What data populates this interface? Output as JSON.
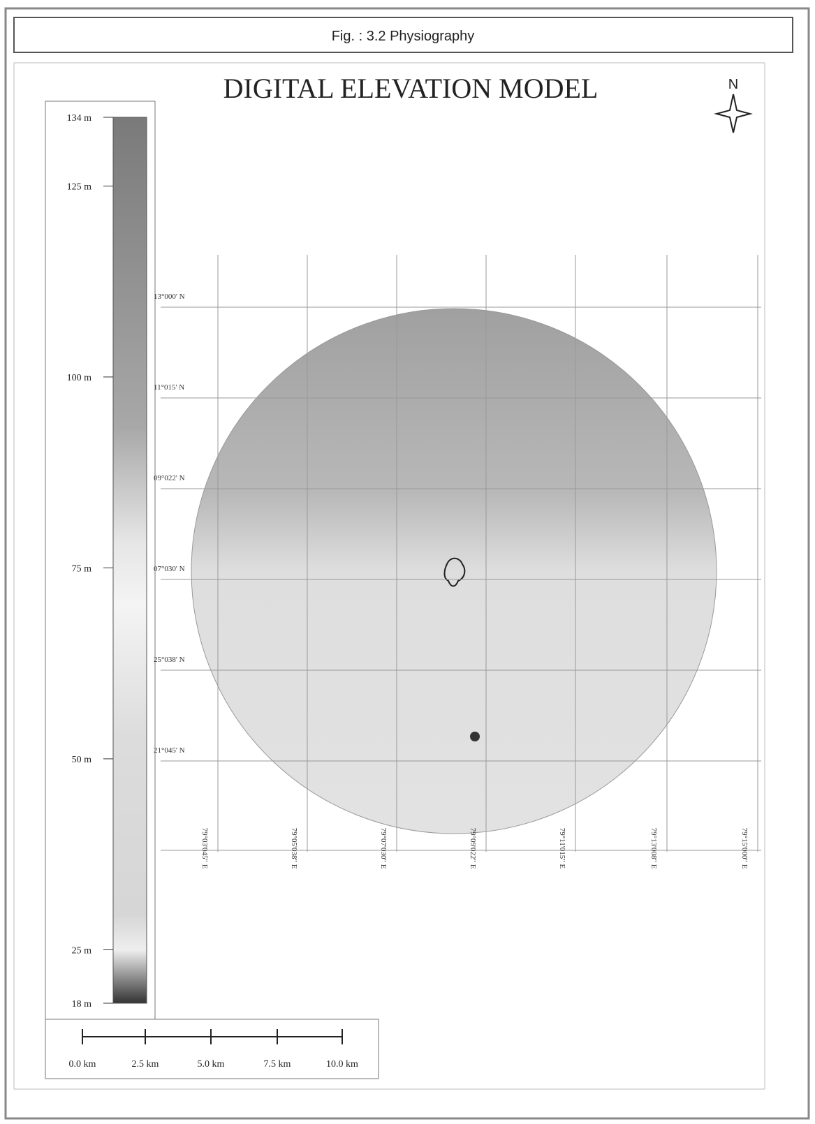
{
  "header": {
    "title": "Fig. : 3.2  Physiography"
  },
  "map": {
    "title": "DIGITAL ELEVATION MODEL",
    "north": "N",
    "legend": {
      "range": [
        18,
        134
      ],
      "ticks": [
        {
          "value": 134,
          "label": "134 m"
        },
        {
          "value": 125,
          "label": "125 m"
        },
        {
          "value": 100,
          "label": "100 m"
        },
        {
          "value": 75,
          "label": "75 m"
        },
        {
          "value": 50,
          "label": "50 m"
        },
        {
          "value": 25,
          "label": "25 m"
        },
        {
          "value": 18,
          "label": "18 m"
        }
      ]
    },
    "latitudes": [
      "13°000' N",
      "11°015' N",
      "09°022' N",
      "07°030' N",
      "25°038' N",
      "21°045' N"
    ],
    "longitudes": [
      "79°03'045\" E",
      "79°05'038\" E",
      "79°07'030\" E",
      "79°09'022\" E",
      "79°11'015\" E",
      "79°13'008\" E",
      "79°15'000\" E"
    ],
    "scale_bar": [
      "0.0 km",
      "2.5 km",
      "5.0 km",
      "7.5 km",
      "10.0 km"
    ]
  }
}
